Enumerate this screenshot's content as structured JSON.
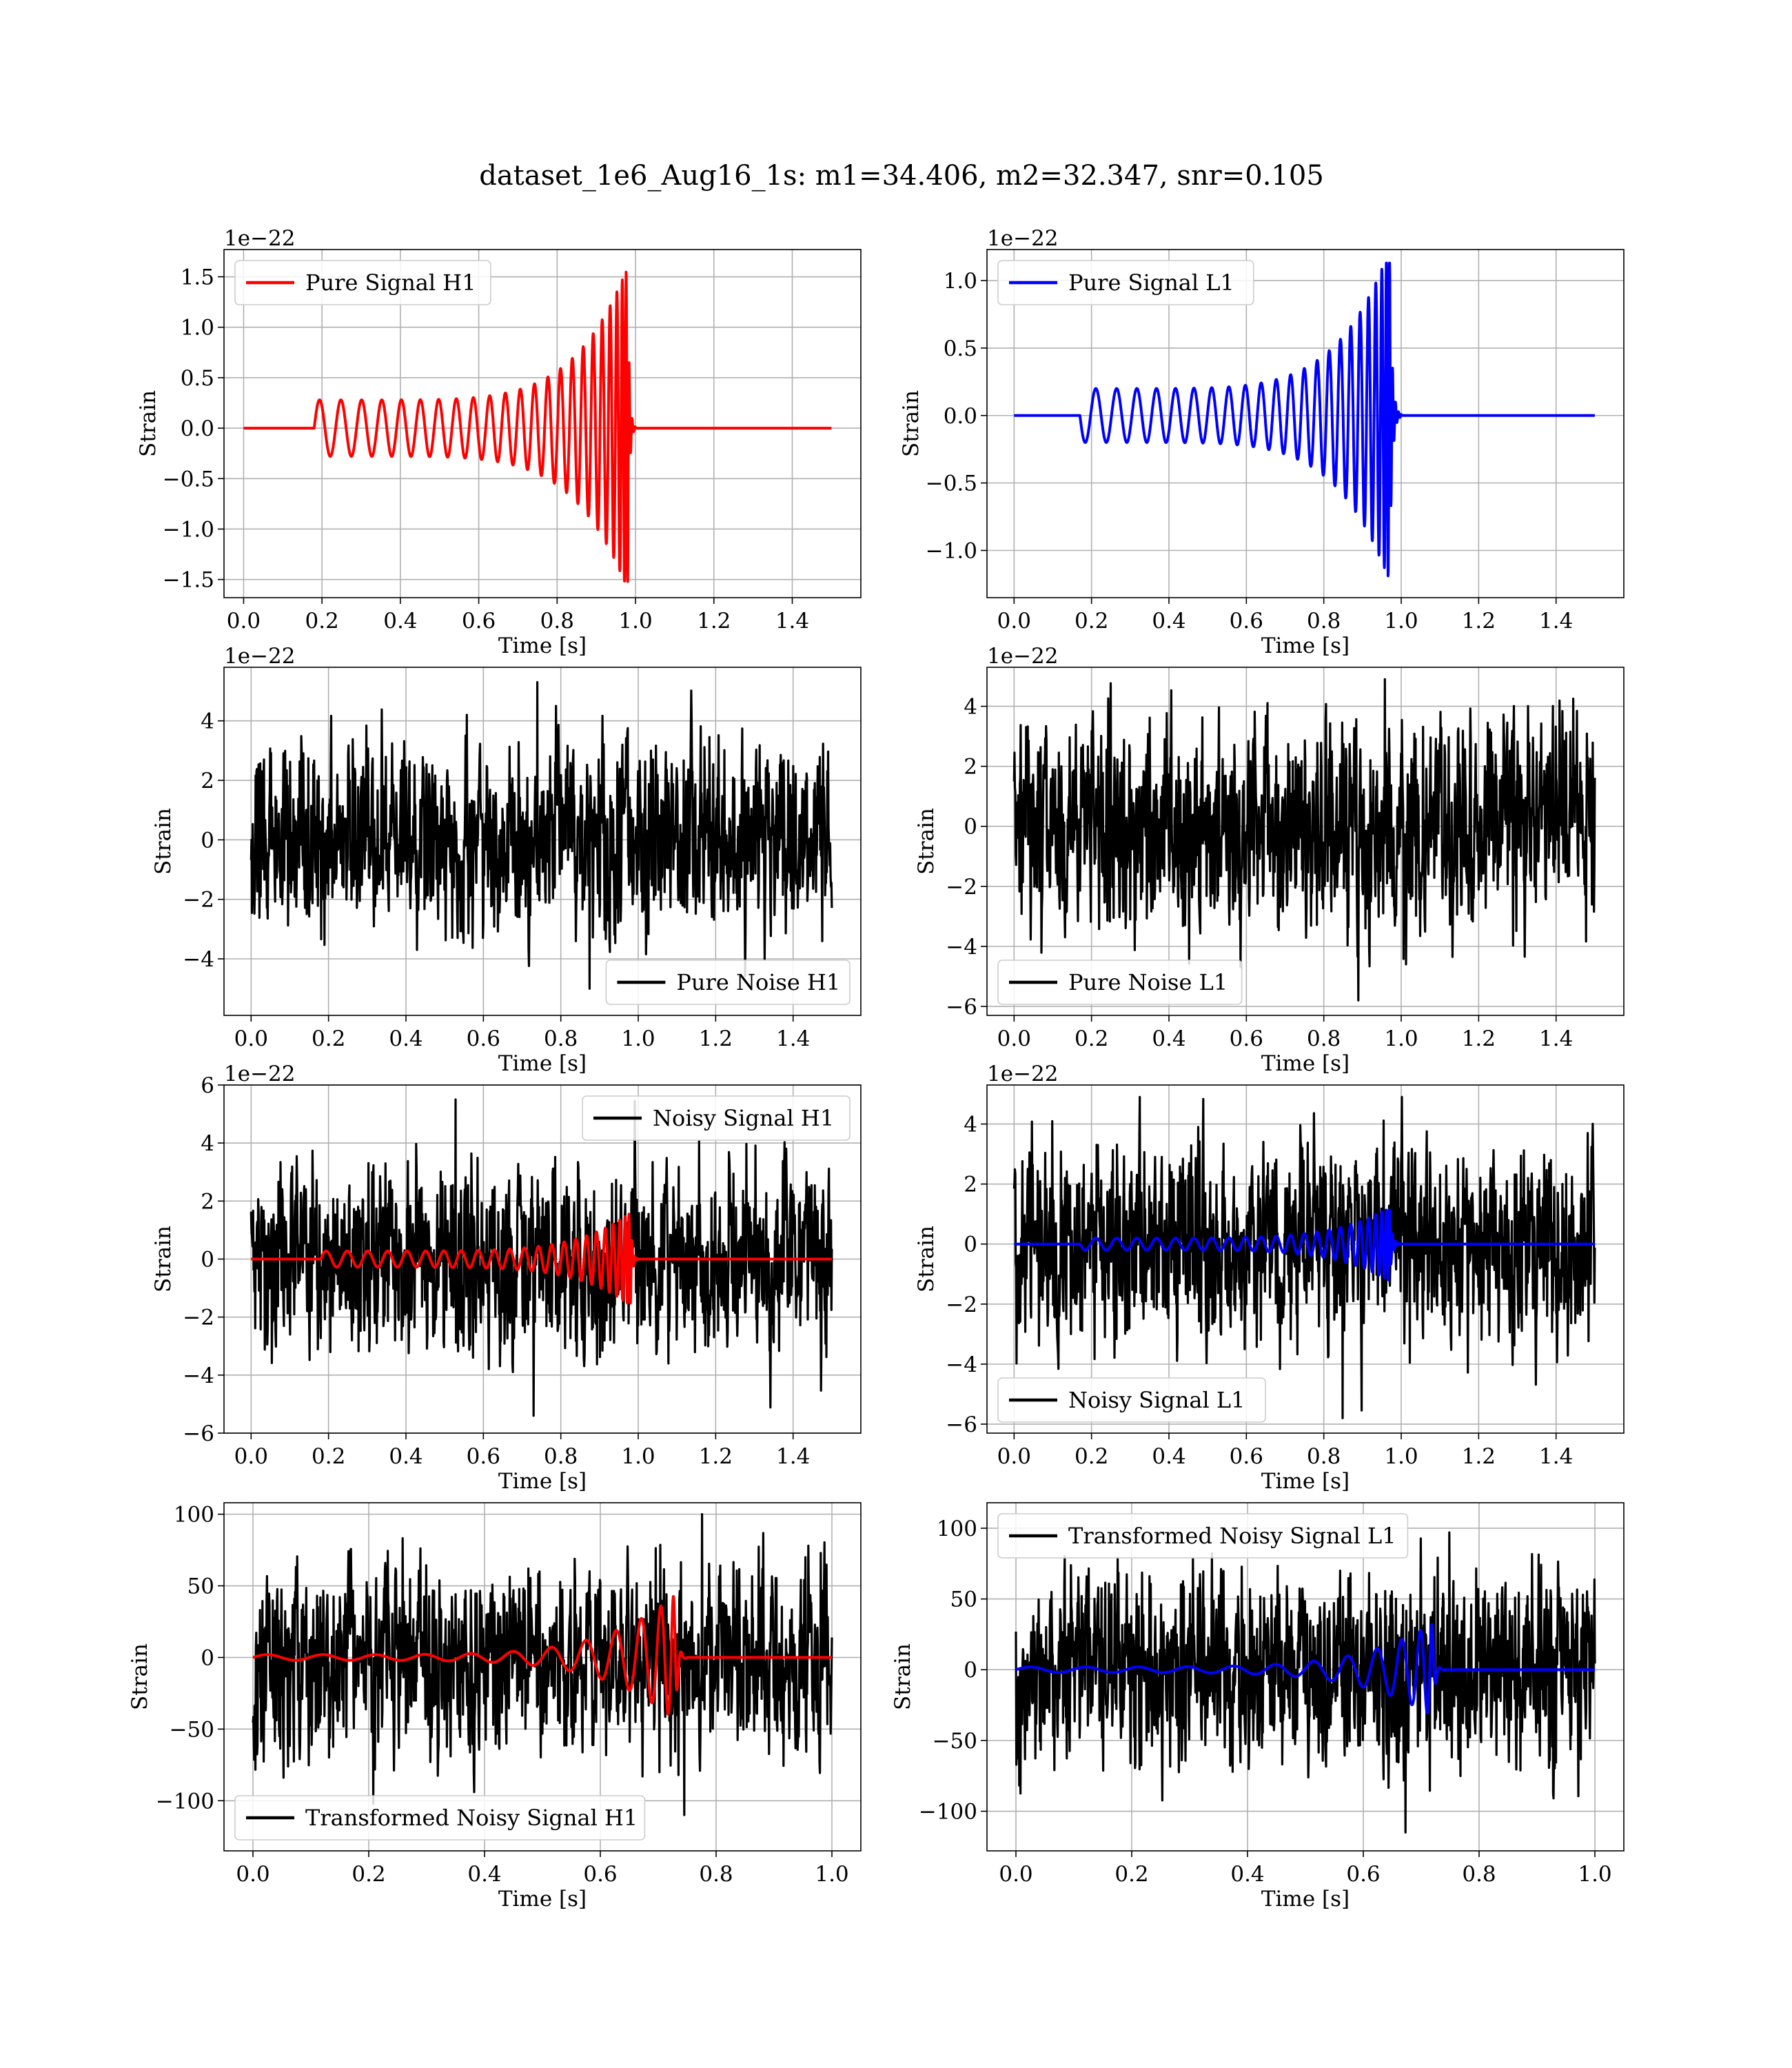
{
  "figure_title": "dataset_1e6_Aug16_1s: m1=34.406, m2=32.347, snr=0.105",
  "colors": {
    "h1_signal": "#ff0000",
    "l1_signal": "#0000ff",
    "noise": "#000000",
    "grid": "#b0b0b0"
  },
  "chart_data": [
    {
      "type": "line",
      "legend": [
        "Pure Signal H1"
      ],
      "legend_loc": "upper left",
      "xlabel": "Time [s]",
      "ylabel": "Strain",
      "offset_text": "1e−22",
      "xlim": [
        -0.05,
        1.575
      ],
      "ylim": [
        -1.68,
        1.77
      ],
      "xticks": [
        0.0,
        0.2,
        0.4,
        0.6,
        0.8,
        1.0,
        1.2,
        1.4
      ],
      "xtick_labels": [
        "0.0",
        "0.2",
        "0.4",
        "0.6",
        "0.8",
        "1.0",
        "1.2",
        "1.4"
      ],
      "yticks": [
        -1.5,
        -1.0,
        -0.5,
        0.0,
        0.5,
        1.0,
        1.5
      ],
      "ytick_labels": [
        "−1.5",
        "−1.0",
        "−0.5",
        "0.0",
        "0.5",
        "1.0",
        "1.5"
      ],
      "grid": true,
      "series": [
        {
          "name": "Pure Signal H1",
          "color": "#ff0000",
          "kind": "chirp",
          "x_range": [
            0.0,
            1.5
          ],
          "onset": 0.18,
          "merger": 0.98,
          "amp_start": 0.28,
          "amp_peak": 1.6,
          "amp_min": -1.52,
          "ringdown_end": 1.0
        }
      ]
    },
    {
      "type": "line",
      "legend": [
        "Pure Signal L1"
      ],
      "legend_loc": "upper left",
      "xlabel": "Time [s]",
      "ylabel": "Strain",
      "offset_text": "1e−22",
      "xlim": [
        -0.07,
        1.575
      ],
      "ylim": [
        -1.35,
        1.23
      ],
      "xticks": [
        0.0,
        0.2,
        0.4,
        0.6,
        0.8,
        1.0,
        1.2,
        1.4
      ],
      "xtick_labels": [
        "0.0",
        "0.2",
        "0.4",
        "0.6",
        "0.8",
        "1.0",
        "1.2",
        "1.4"
      ],
      "yticks": [
        -1.0,
        -0.5,
        0.0,
        0.5,
        1.0
      ],
      "ytick_labels": [
        "−1.0",
        "−0.5",
        "0.0",
        "0.5",
        "1.0"
      ],
      "grid": true,
      "series": [
        {
          "name": "Pure Signal L1",
          "color": "#0000ff",
          "kind": "chirp",
          "x_range": [
            0.0,
            1.5
          ],
          "onset": 0.17,
          "merger": 0.97,
          "amp_start": -0.2,
          "amp_peak": 1.13,
          "amp_min": -1.23,
          "ringdown_end": 1.0
        }
      ]
    },
    {
      "type": "line",
      "legend": [
        "Pure Noise H1"
      ],
      "legend_loc": "lower right",
      "xlabel": "Time [s]",
      "ylabel": "Strain",
      "offset_text": "1e−22",
      "xlim": [
        -0.07,
        1.575
      ],
      "ylim": [
        -5.9,
        5.8
      ],
      "xticks": [
        0.0,
        0.2,
        0.4,
        0.6,
        0.8,
        1.0,
        1.2,
        1.4
      ],
      "xtick_labels": [
        "0.0",
        "0.2",
        "0.4",
        "0.6",
        "0.8",
        "1.0",
        "1.2",
        "1.4"
      ],
      "yticks": [
        -4,
        -2,
        0,
        2,
        4
      ],
      "ytick_labels": [
        "−4",
        "−2",
        "0",
        "2",
        "4"
      ],
      "grid": true,
      "series": [
        {
          "name": "Pure Noise H1",
          "color": "#000000",
          "kind": "noise",
          "x_range": [
            0.0,
            1.5
          ],
          "max": 5.3,
          "min": -5.0
        }
      ]
    },
    {
      "type": "line",
      "legend": [
        "Pure Noise L1"
      ],
      "legend_loc": "lower left",
      "xlabel": "Time [s]",
      "ylabel": "Strain",
      "offset_text": "1e−22",
      "xlim": [
        -0.07,
        1.575
      ],
      "ylim": [
        -6.3,
        5.3
      ],
      "xticks": [
        0.0,
        0.2,
        0.4,
        0.6,
        0.8,
        1.0,
        1.2,
        1.4
      ],
      "xtick_labels": [
        "0.0",
        "0.2",
        "0.4",
        "0.6",
        "0.8",
        "1.0",
        "1.2",
        "1.4"
      ],
      "yticks": [
        -6,
        -4,
        -2,
        0,
        2,
        4
      ],
      "ytick_labels": [
        "−6",
        "−4",
        "−2",
        "0",
        "2",
        "4"
      ],
      "grid": true,
      "series": [
        {
          "name": "Pure Noise L1",
          "color": "#000000",
          "kind": "noise",
          "x_range": [
            0.0,
            1.5
          ],
          "max": 4.9,
          "min": -5.8
        }
      ]
    },
    {
      "type": "line",
      "legend": [
        "Noisy Signal H1"
      ],
      "legend_loc": "upper right",
      "xlabel": "Time [s]",
      "ylabel": "Strain",
      "offset_text": "1e−22",
      "xlim": [
        -0.07,
        1.575
      ],
      "ylim": [
        -6.0,
        6.0
      ],
      "xticks": [
        0.0,
        0.2,
        0.4,
        0.6,
        0.8,
        1.0,
        1.2,
        1.4
      ],
      "xtick_labels": [
        "0.0",
        "0.2",
        "0.4",
        "0.6",
        "0.8",
        "1.0",
        "1.2",
        "1.4"
      ],
      "yticks": [
        -6,
        -4,
        -2,
        0,
        2,
        4,
        6
      ],
      "ytick_labels": [
        "−6",
        "−4",
        "−2",
        "0",
        "2",
        "4",
        "6"
      ],
      "grid": true,
      "series": [
        {
          "name": "Noisy Signal H1",
          "color": "#000000",
          "kind": "noise",
          "x_range": [
            0.0,
            1.5
          ],
          "max": 5.5,
          "min": -5.4
        },
        {
          "color": "#ff0000",
          "kind": "chirp",
          "x_range": [
            0.0,
            1.5
          ],
          "onset": 0.18,
          "merger": 0.98,
          "amp_start": 0.28,
          "amp_peak": 1.6,
          "amp_min": -1.52,
          "ringdown_end": 1.0
        }
      ]
    },
    {
      "type": "line",
      "legend": [
        "Noisy Signal L1"
      ],
      "legend_loc": "lower left",
      "xlabel": "Time [s]",
      "ylabel": "Strain",
      "offset_text": "1e−22",
      "xlim": [
        -0.07,
        1.575
      ],
      "ylim": [
        -6.3,
        5.3
      ],
      "xticks": [
        0.0,
        0.2,
        0.4,
        0.6,
        0.8,
        1.0,
        1.2,
        1.4
      ],
      "xtick_labels": [
        "0.0",
        "0.2",
        "0.4",
        "0.6",
        "0.8",
        "1.0",
        "1.2",
        "1.4"
      ],
      "yticks": [
        -6,
        -4,
        -2,
        0,
        2,
        4
      ],
      "ytick_labels": [
        "−6",
        "−4",
        "−2",
        "0",
        "2",
        "4"
      ],
      "grid": true,
      "series": [
        {
          "name": "Noisy Signal L1",
          "color": "#000000",
          "kind": "noise",
          "x_range": [
            0.0,
            1.5
          ],
          "max": 4.9,
          "min": -5.8
        },
        {
          "color": "#0000ff",
          "kind": "chirp",
          "x_range": [
            0.0,
            1.5
          ],
          "onset": 0.17,
          "merger": 0.97,
          "amp_start": -0.2,
          "amp_peak": 1.13,
          "amp_min": -1.23,
          "ringdown_end": 1.0
        }
      ]
    },
    {
      "type": "line",
      "legend": [
        "Transformed Noisy Signal H1"
      ],
      "legend_loc": "lower left",
      "xlabel": "Time [s]",
      "ylabel": "Strain",
      "offset_text": "",
      "xlim": [
        -0.05,
        1.05
      ],
      "ylim": [
        -135,
        108
      ],
      "xticks": [
        0.0,
        0.2,
        0.4,
        0.6,
        0.8,
        1.0
      ],
      "xtick_labels": [
        "0.0",
        "0.2",
        "0.4",
        "0.6",
        "0.8",
        "1.0"
      ],
      "yticks": [
        -100,
        -50,
        0,
        50,
        100
      ],
      "ytick_labels": [
        "−100",
        "−50",
        "0",
        "50",
        "100"
      ],
      "grid": true,
      "series": [
        {
          "name": "Transformed Noisy Signal H1",
          "color": "#000000",
          "kind": "noise",
          "x_range": [
            0.0,
            1.0
          ],
          "max": 100,
          "min": -110
        },
        {
          "color": "#ff0000",
          "kind": "chirp",
          "x_range": [
            0.0,
            1.0
          ],
          "onset": 0.0,
          "merger": 0.73,
          "amp_start": 2,
          "amp_peak": 44,
          "amp_min": -40,
          "ringdown_end": 0.75
        }
      ]
    },
    {
      "type": "line",
      "legend": [
        "Transformed Noisy Signal L1"
      ],
      "legend_loc": "upper left",
      "xlabel": "Time [s]",
      "ylabel": "Strain",
      "offset_text": "",
      "xlim": [
        -0.05,
        1.05
      ],
      "ylim": [
        -128,
        118
      ],
      "xticks": [
        0.0,
        0.2,
        0.4,
        0.6,
        0.8,
        1.0
      ],
      "xtick_labels": [
        "0.0",
        "0.2",
        "0.4",
        "0.6",
        "0.8",
        "1.0"
      ],
      "yticks": [
        -100,
        -50,
        0,
        50,
        100
      ],
      "ytick_labels": [
        "−100",
        "−50",
        "0",
        "50",
        "100"
      ],
      "grid": true,
      "series": [
        {
          "name": "Transformed Noisy Signal L1",
          "color": "#000000",
          "kind": "noise",
          "x_range": [
            0.0,
            1.0
          ],
          "max": 97,
          "min": -115
        },
        {
          "color": "#0000ff",
          "kind": "chirp",
          "x_range": [
            0.0,
            1.0
          ],
          "onset": 0.0,
          "merger": 0.72,
          "amp_start": 2,
          "amp_peak": 32,
          "amp_min": -33,
          "ringdown_end": 0.74
        }
      ]
    }
  ]
}
